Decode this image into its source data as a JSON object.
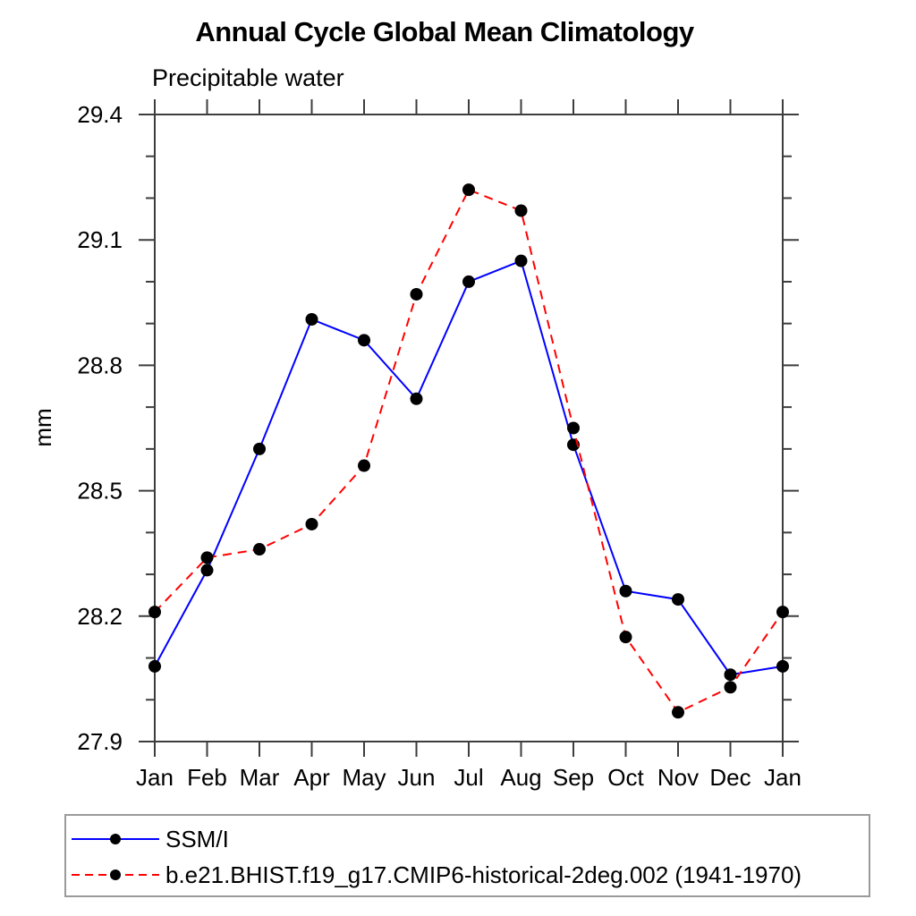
{
  "chart_data": {
    "type": "line",
    "title": "Annual Cycle Global Mean Climatology",
    "subtitle": "Precipitable water",
    "ylabel": "mm",
    "ylim": [
      27.9,
      29.4
    ],
    "yticks_major": [
      27.9,
      28.2,
      28.5,
      28.8,
      29.1,
      29.4
    ],
    "ytick_minor_step": 0.1,
    "x_categories": [
      "Jan",
      "Feb",
      "Mar",
      "Apr",
      "May",
      "Jun",
      "Jul",
      "Aug",
      "Sep",
      "Oct",
      "Nov",
      "Dec",
      "Jan"
    ],
    "grid": false,
    "legend_position": "bottom-left-box",
    "series": [
      {
        "name": "SSM/I",
        "color": "#0000ff",
        "line_style": "solid",
        "marker": "filled-circle",
        "marker_color": "#000000",
        "values": [
          28.08,
          28.31,
          28.6,
          28.91,
          28.86,
          28.72,
          29.0,
          29.05,
          28.61,
          28.26,
          28.24,
          28.06,
          28.08
        ]
      },
      {
        "name": "b.e21.BHIST.f19_g17.CMIP6-historical-2deg.002 (1941-1970)",
        "color": "#ff0000",
        "line_style": "dashed",
        "marker": "filled-circle",
        "marker_color": "#000000",
        "values": [
          28.21,
          28.34,
          28.36,
          28.42,
          28.56,
          28.97,
          29.22,
          29.17,
          28.65,
          28.15,
          27.97,
          28.03,
          28.21
        ]
      }
    ]
  }
}
